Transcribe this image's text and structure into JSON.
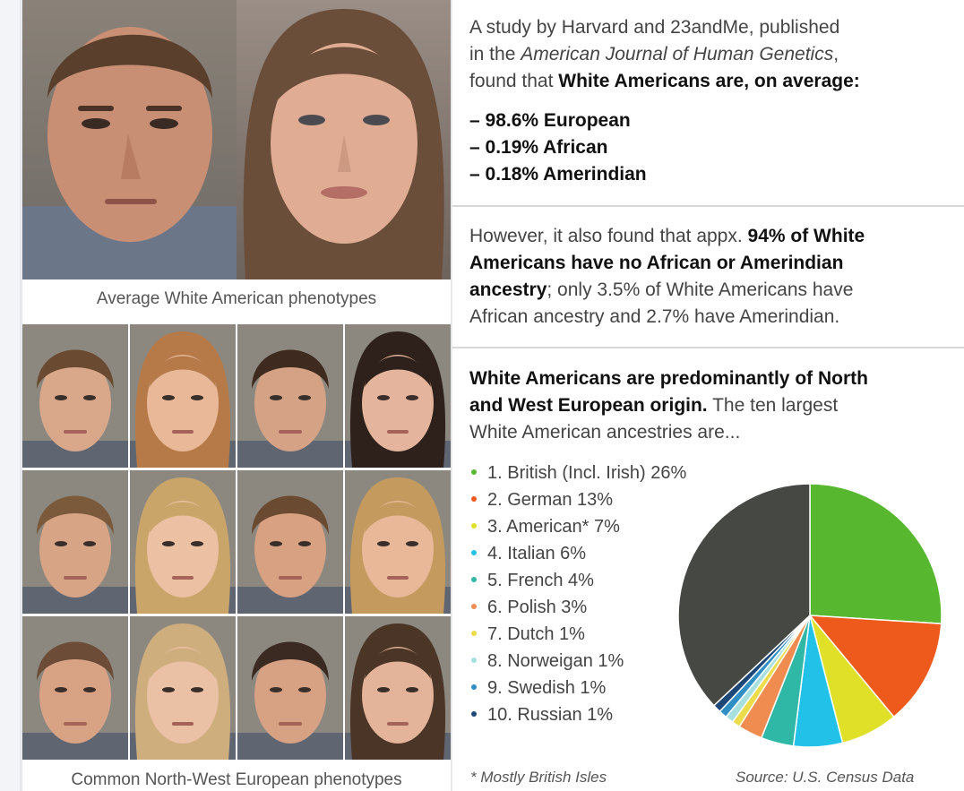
{
  "captions": {
    "average": "Average White American phenotypes",
    "common": "Common North-West European phenotypes"
  },
  "study": {
    "line1": "A study by Harvard and 23andMe, published",
    "line2_pre": "in the ",
    "journal": "American Journal of Human Genetics",
    "line2_post": ",",
    "line3_pre": "found that ",
    "line3_bold": "White Americans are, on average:"
  },
  "averages": [
    "– 98.6% European",
    "– 0.19% African",
    "– 0.18% Amerindian"
  ],
  "however": {
    "pre": "However, it also found that appx. ",
    "bold1": "94% of White",
    "bold2": "Americans have no African or Amerindian",
    "bold3": "ancestry",
    "post3": "; only 3.5% of White Americans have",
    "line4": "African ancestry and 2.7% have Amerindian."
  },
  "origin": {
    "bold1": "White Americans are predominantly of North",
    "bold2": "and West European origin.",
    "post2": " The ten largest",
    "line3": "White American ancestries are..."
  },
  "chart_data": {
    "type": "pie",
    "title": "",
    "slices": [
      {
        "label": "1. British (Incl. Irish) 26%",
        "value": 26,
        "color": "#57b82f"
      },
      {
        "label": "2. German 13%",
        "value": 13,
        "color": "#ee5a1c"
      },
      {
        "label": "3. American* 7%",
        "value": 7,
        "color": "#dfe027"
      },
      {
        "label": "4. Italian 6%",
        "value": 6,
        "color": "#22c1e8"
      },
      {
        "label": "5. French 4%",
        "value": 4,
        "color": "#2fb8a6"
      },
      {
        "label": "6. Polish 3%",
        "value": 3,
        "color": "#f08c4f"
      },
      {
        "label": "7. Dutch 1%",
        "value": 1,
        "color": "#ecdc4a"
      },
      {
        "label": "8. Norweigan 1%",
        "value": 1,
        "color": "#a8e0df"
      },
      {
        "label": "9. Swedish 1%",
        "value": 1,
        "color": "#2f8fc4"
      },
      {
        "label": "10. Russian 1%",
        "value": 1,
        "color": "#1d4776"
      }
    ],
    "remainder": {
      "value": 37,
      "color": "#464844"
    }
  },
  "footnotes": {
    "left": "* Mostly British Isles",
    "right": "Source: U.S. Census Data"
  },
  "photo_colors": {
    "hair": [
      "#6a4a30",
      "#b57a48",
      "#3e2a1e",
      "#2e211b",
      "#7a5a3a",
      "#c9a56a",
      "#6b4a32",
      "#c59a5e",
      "#6c4c36",
      "#cfae7e",
      "#3a2a22",
      "#4a3526"
    ],
    "skin": [
      "#d9a88a",
      "#e8b898",
      "#d6a286",
      "#e4b59c",
      "#d8a486",
      "#ecc0a2",
      "#d7a182",
      "#e8b899",
      "#d8a385",
      "#ebc1a6",
      "#d7a184",
      "#e3b39a"
    ]
  }
}
